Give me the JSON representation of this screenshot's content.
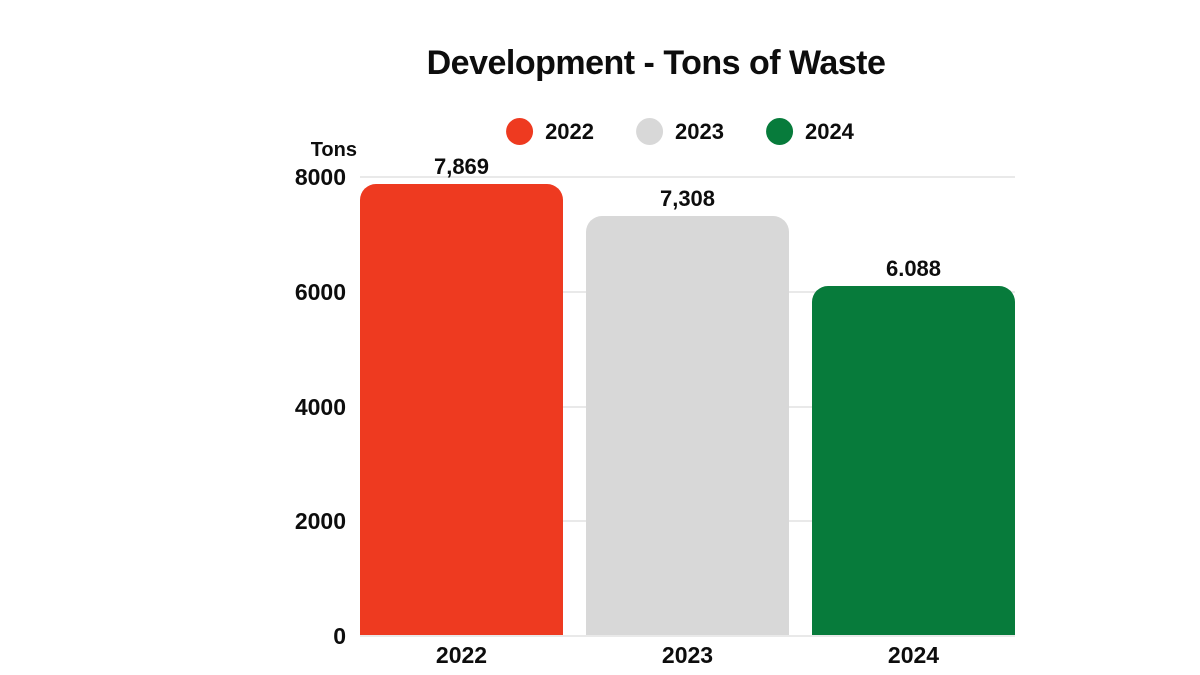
{
  "chart": {
    "title": "Development - Tons of Waste",
    "y_unit": "Tons"
  },
  "chart_data": {
    "type": "bar",
    "title": "Development - Tons of Waste",
    "ylabel": "Tons",
    "xlabel": "",
    "categories": [
      "2022",
      "2023",
      "2024"
    ],
    "values": [
      7869,
      7308,
      6088
    ],
    "value_labels": [
      "7,869",
      "7,308",
      "6.088"
    ],
    "bar_colors": [
      "#ee3a20",
      "#d8d8d8",
      "#077b3b"
    ],
    "legend": [
      {
        "label": "2022",
        "color": "#ee3a20"
      },
      {
        "label": "2023",
        "color": "#d8d8d8"
      },
      {
        "label": "2024",
        "color": "#077b3b"
      }
    ],
    "legend_position": "top",
    "ylim": [
      0,
      8000
    ],
    "yticks": [
      8000,
      6000,
      4000,
      2000,
      0
    ],
    "ytick_labels": [
      "8000",
      "6000",
      "4000",
      "2000",
      "0"
    ],
    "grid": true,
    "background": "#ffffff",
    "gridline_color": "#e9e9e9",
    "text_color": "#0d0d0d"
  }
}
